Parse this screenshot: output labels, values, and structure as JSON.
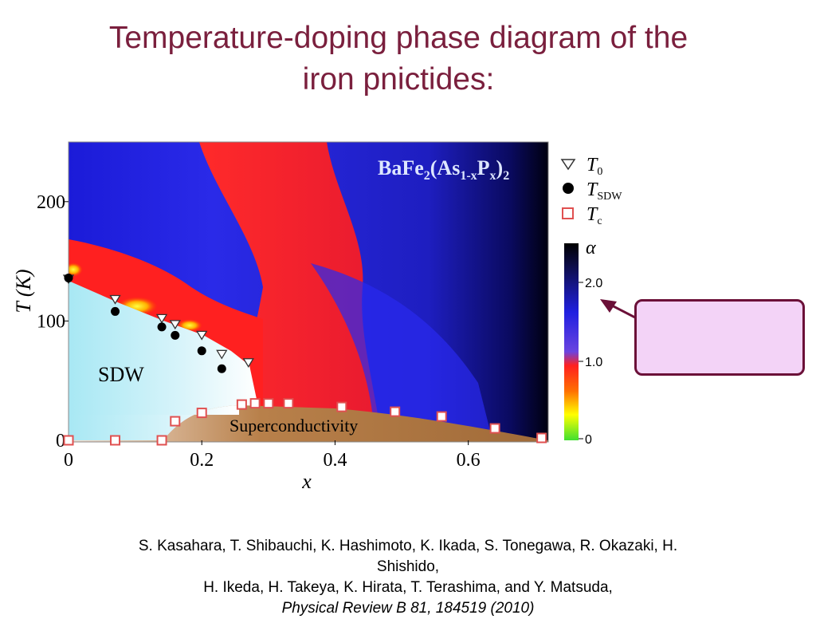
{
  "title": {
    "line1": "Temperature-doping phase diagram of  the",
    "line2": "iron pnictides:"
  },
  "chart_data": {
    "type": "heatmap",
    "compound_label": "BaFe2(As1-xPx)2",
    "xlabel": "x",
    "ylabel": "T (K)",
    "xlim": [
      0,
      0.72
    ],
    "ylim": [
      0,
      250
    ],
    "x_ticks": [
      "0",
      "0.2",
      "0.4",
      "0.6"
    ],
    "y_ticks": [
      "0",
      "100",
      "200"
    ],
    "region_labels": [
      "SDW",
      "Superconductivity"
    ],
    "colorbar": {
      "label": "α",
      "ticks": [
        "2.0",
        "1.0",
        "0"
      ],
      "colors": [
        "#000000",
        "#1a1aa0",
        "#2020e0",
        "#7a4ae0",
        "#ff2020",
        "#ff8000",
        "#ffff00",
        "#40e030"
      ]
    },
    "legend": [
      {
        "marker": "triangle-down-open",
        "label": "T0"
      },
      {
        "marker": "circle-filled",
        "label": "TSDW"
      },
      {
        "marker": "square-open",
        "label": "Tc"
      }
    ],
    "series": [
      {
        "name": "T0",
        "x": [
          0.0,
          0.07,
          0.14,
          0.16,
          0.2,
          0.23,
          0.27
        ],
        "y": [
          135,
          118,
          102,
          97,
          88,
          72,
          65
        ]
      },
      {
        "name": "TSDW",
        "x": [
          0.0,
          0.07,
          0.14,
          0.16,
          0.2,
          0.23
        ],
        "y": [
          136,
          108,
          95,
          88,
          75,
          60
        ]
      },
      {
        "name": "Tc",
        "x": [
          0.0,
          0.07,
          0.14,
          0.16,
          0.2,
          0.26,
          0.28,
          0.3,
          0.33,
          0.41,
          0.49,
          0.56,
          0.64,
          0.71
        ],
        "y": [
          0,
          0,
          0,
          16,
          23,
          30,
          31,
          31,
          31,
          28,
          24,
          20,
          10,
          2
        ]
      }
    ]
  },
  "citation": {
    "line1": "S. Kasahara, T. Shibauchi, K. Hashimoto, K. Ikada, S. Tonegawa, R. Okazaki, H.",
    "line2": "Shishido,",
    "line3": "H. Ikeda, H. Takeya, K. Hirata, T. Terashima, and Y. Matsuda,",
    "line4": "Physical Review B 81, 184519 (2010)"
  }
}
